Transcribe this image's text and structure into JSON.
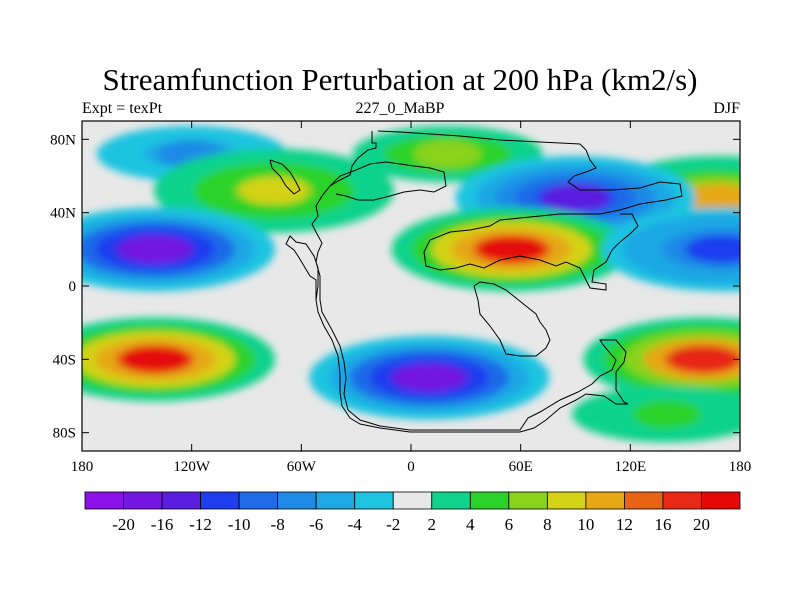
{
  "title": "Streamfunction Perturbation at 200 hPa (km2/s)",
  "subtitle_left": "Expt = texPt",
  "subtitle_center": "227_0_MaBP",
  "subtitle_right": "DJF",
  "map": {
    "lon_range": [
      -180,
      180
    ],
    "lat_range": [
      -90,
      90
    ],
    "x_ticks": [
      "180",
      "120W",
      "60W",
      "0",
      "60E",
      "120E",
      "180"
    ],
    "y_ticks": [
      "80N",
      "40N",
      "0",
      "40S",
      "80S"
    ],
    "background_color": "#e8e8e8",
    "features": [
      {
        "name": "trough-north-pacific",
        "lon": -120,
        "lat": 72,
        "value": -7
      },
      {
        "name": "ridge-north-pacific",
        "lon": 168,
        "lat": 48,
        "value": 11
      },
      {
        "name": "ridge-north-atlantic",
        "lon": -75,
        "lat": 52,
        "value": 8
      },
      {
        "name": "ridge-arctic",
        "lon": 20,
        "lat": 72,
        "value": 7
      },
      {
        "name": "trough-north-asia",
        "lon": 90,
        "lat": 48,
        "value": -16
      },
      {
        "name": "trough-tropical-pacific",
        "lon": -140,
        "lat": 20,
        "value": -20
      },
      {
        "name": "ridge-tropical-eurasia",
        "lon": 55,
        "lat": 20,
        "value": 20
      },
      {
        "name": "ridge-tropical-pacific-east",
        "lon": 170,
        "lat": 20,
        "value": -12
      },
      {
        "name": "ridge-south-pacific",
        "lon": -140,
        "lat": -40,
        "value": 20
      },
      {
        "name": "trough-south-atlantic",
        "lon": 10,
        "lat": -50,
        "value": -20
      },
      {
        "name": "ridge-south-indian-east",
        "lon": 160,
        "lat": -40,
        "value": 18
      },
      {
        "name": "southern-ocean-band",
        "lon": 140,
        "lat": -70,
        "value": 5
      }
    ]
  },
  "colorbar": {
    "labels": [
      "-20",
      "-16",
      "-12",
      "-10",
      "-8",
      "-6",
      "-4",
      "-2",
      "2",
      "4",
      "6",
      "8",
      "10",
      "12",
      "16",
      "20"
    ],
    "colors": [
      "#8c10e8",
      "#7316e0",
      "#5a1ee0",
      "#1e3cf0",
      "#1e6ae8",
      "#1e8ae6",
      "#1ea8e4",
      "#1ec4e0",
      "#e8e8e8",
      "#10d28c",
      "#2ad22a",
      "#8ad21e",
      "#d4d214",
      "#e6a814",
      "#e66414",
      "#e62814",
      "#e40a0a"
    ]
  }
}
